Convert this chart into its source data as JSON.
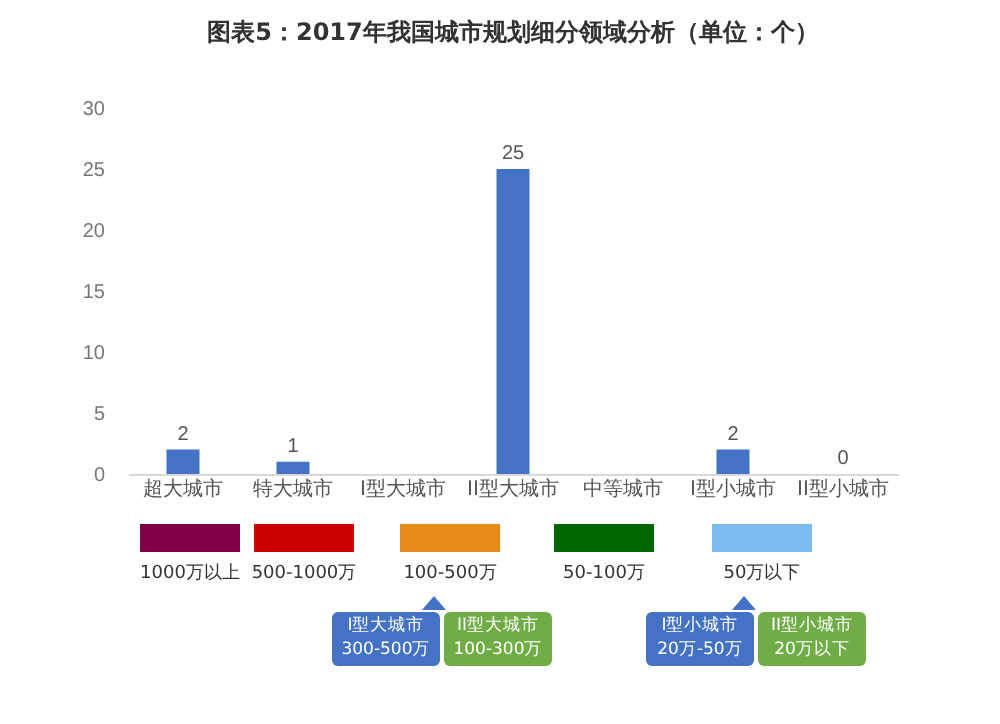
{
  "chart_data": {
    "type": "bar",
    "title": "图表5：2017年我国城市规划细分领域分析（单位：个）",
    "categories": [
      "超大城市",
      "特大城市",
      "I型大城市",
      "II型大城市",
      "中等城市",
      "I型小城市",
      "II型小城市"
    ],
    "values": [
      2,
      1,
      null,
      25,
      null,
      2,
      0
    ],
    "value_labels": [
      "2",
      "1",
      null,
      "25",
      null,
      "2",
      "0"
    ],
    "color": "#4472c4",
    "ylim": [
      0,
      30
    ],
    "yticks": [
      0,
      5,
      10,
      15,
      20,
      25,
      30
    ],
    "grid": false,
    "annotations": [
      "1000万以上",
      "500-1000万",
      "100-500万",
      "50-100万",
      "50万以下",
      "I型大城市 300-500万",
      "II型大城市 100-300万",
      "I型小城市 20万-50万",
      "II型小城市 20万以下"
    ]
  }
}
